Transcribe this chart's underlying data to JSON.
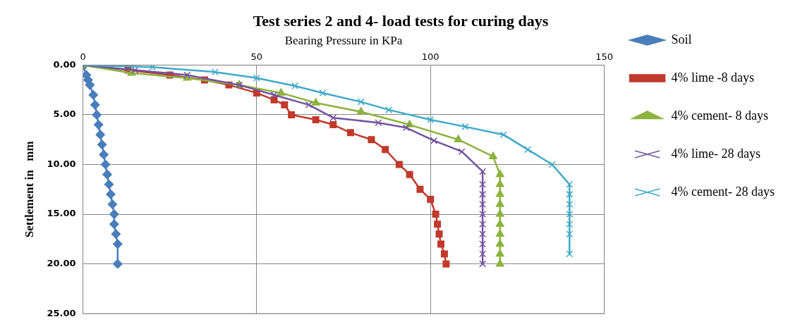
{
  "chart_data": {
    "type": "line",
    "title": "Test series 2 and 4- load tests for curing days",
    "xlabel": "Bearing Pressure in KPa",
    "ylabel": "Settlement in   mm",
    "xlim": [
      0,
      150
    ],
    "xticks": [
      0,
      50,
      100,
      150
    ],
    "ylim": [
      25,
      0
    ],
    "yticks": [
      {
        "value": 0,
        "label": "0.00"
      },
      {
        "value": 5,
        "label": "5.00"
      },
      {
        "value": 10,
        "label": "10.00"
      },
      {
        "value": 15,
        "label": "15.00"
      },
      {
        "value": 20,
        "label": "20.00"
      },
      {
        "value": 25,
        "label": "25.00"
      }
    ],
    "grid": true,
    "legend": "right",
    "series": [
      {
        "name": "Soil",
        "color": "#4a7ebb",
        "marker": "diamond",
        "x": [
          0,
          1,
          1.5,
          2,
          3,
          3.5,
          4,
          4.5,
          5,
          5.5,
          6,
          6.5,
          7,
          7.5,
          8,
          8.5,
          9,
          9,
          9.5,
          10,
          10
        ],
        "values": [
          0,
          1,
          1.5,
          2,
          3,
          4,
          5,
          6,
          7,
          8,
          9,
          10,
          11,
          12,
          13,
          14,
          15,
          16,
          17,
          18,
          20
        ]
      },
      {
        "name": "4% lime -8 days",
        "color": "#c0392b",
        "marker": "square",
        "x": [
          0,
          13,
          25,
          35,
          42,
          50,
          55,
          58,
          60,
          67,
          72,
          77,
          83,
          87,
          91,
          94,
          97,
          100,
          101.5,
          102,
          102.5,
          103,
          104,
          104.5
        ],
        "values": [
          0,
          0.5,
          1,
          1.5,
          2,
          2.8,
          3.5,
          4,
          5,
          5.5,
          6,
          6.8,
          7.5,
          8.5,
          10,
          11,
          12.5,
          13.5,
          15,
          16,
          17,
          18,
          19,
          20
        ]
      },
      {
        "name": "4% cement- 8 days",
        "color": "#8db33e",
        "marker": "triangle",
        "x": [
          0,
          14,
          30,
          45,
          57,
          67,
          80,
          94,
          108,
          118,
          120,
          120,
          120,
          120,
          120,
          120,
          120,
          120,
          120,
          120
        ],
        "values": [
          0,
          0.8,
          1.3,
          2,
          2.8,
          3.8,
          4.7,
          6,
          7.5,
          9.2,
          11,
          12,
          13,
          14,
          15,
          16,
          17,
          18,
          19,
          20
        ]
      },
      {
        "name": "4% lime- 28 days",
        "color": "#7354a0",
        "marker": "cross",
        "x": [
          0,
          15,
          30,
          45,
          55,
          65,
          72,
          85,
          93,
          101,
          109,
          115,
          115,
          115,
          115,
          115,
          115,
          115,
          115,
          115,
          115
        ],
        "values": [
          0,
          0.5,
          1,
          2,
          3,
          4,
          5.3,
          5.8,
          6.3,
          7.6,
          8.7,
          10.7,
          12,
          13,
          14,
          15,
          16,
          17,
          18,
          19,
          20
        ]
      },
      {
        "name": "4% cement- 28 days",
        "color": "#3fa9c9",
        "marker": "cross",
        "x": [
          0,
          20,
          38,
          50,
          61,
          69,
          80,
          88,
          100,
          110,
          121,
          128,
          135,
          140,
          140,
          140,
          140,
          140,
          140,
          140
        ],
        "values": [
          0,
          0.2,
          0.7,
          1.3,
          2.1,
          2.8,
          3.7,
          4.5,
          5.5,
          6.2,
          7,
          8.5,
          10,
          12,
          13,
          14,
          15,
          16,
          17,
          19
        ]
      }
    ]
  }
}
